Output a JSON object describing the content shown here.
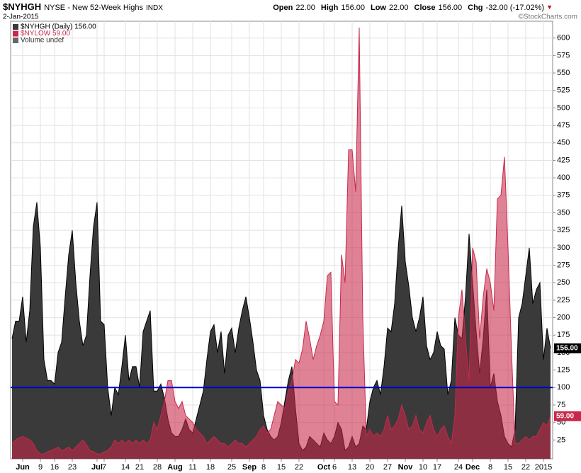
{
  "header": {
    "symbol": "$NYHGH",
    "description": "NYSE - New 52-Week Highs",
    "kind": "INDX",
    "date": "2-Jan-2015",
    "credit": "©StockCharts.com",
    "quote": [
      {
        "label": "Open",
        "value": "22.00"
      },
      {
        "label": "High",
        "value": "156.00"
      },
      {
        "label": "Low",
        "value": "22.00"
      },
      {
        "label": "Close",
        "value": "156.00"
      },
      {
        "label": "Chg",
        "value": "-32.00 (-17.02%)"
      }
    ]
  },
  "chart_data": {
    "type": "area",
    "x": [
      0,
      1,
      2,
      3,
      4,
      5,
      6,
      7,
      8,
      9,
      10,
      11,
      12,
      13,
      14,
      15,
      16,
      17,
      18,
      19,
      20,
      21,
      22,
      23,
      24,
      25,
      26,
      27,
      28,
      29,
      30,
      31,
      32,
      33,
      34,
      35,
      36,
      37,
      38,
      39,
      40,
      41,
      42,
      43,
      44,
      45,
      46,
      47,
      48,
      49,
      50,
      51,
      52,
      53,
      54,
      55,
      56,
      57,
      58,
      59,
      60,
      61,
      62,
      63,
      64,
      65,
      66,
      67,
      68,
      69,
      70,
      71,
      72,
      73,
      74,
      75,
      76,
      77,
      78,
      79,
      80,
      81,
      82,
      83,
      84,
      85,
      86,
      87,
      88,
      89,
      90,
      91,
      92,
      93,
      94,
      95,
      96,
      97,
      98,
      99,
      100,
      101,
      102,
      103,
      104,
      105,
      106,
      107,
      108,
      109,
      110,
      111,
      112,
      113,
      114,
      115,
      116,
      117,
      118,
      119,
      120,
      121,
      122,
      123,
      124,
      125,
      126,
      127,
      128,
      129,
      130,
      131,
      132,
      133,
      134,
      135,
      136,
      137,
      138,
      139,
      140,
      141,
      142,
      143,
      144,
      145,
      146,
      147,
      148,
      149,
      150,
      151,
      152
    ],
    "xlim": [
      -0.4,
      152.6
    ],
    "xticks": [
      {
        "value": 3,
        "label": "Jun"
      },
      {
        "value": 8,
        "label": "9"
      },
      {
        "value": 12,
        "label": "16"
      },
      {
        "value": 17,
        "label": "23"
      },
      {
        "value": 24,
        "label": "Jul"
      },
      {
        "value": 26,
        "label": "7"
      },
      {
        "value": 32,
        "label": "14"
      },
      {
        "value": 36,
        "label": "21"
      },
      {
        "value": 41,
        "label": "28"
      },
      {
        "value": 46,
        "label": "Aug"
      },
      {
        "value": 51,
        "label": "11"
      },
      {
        "value": 56,
        "label": "18"
      },
      {
        "value": 62,
        "label": "25"
      },
      {
        "value": 67,
        "label": "Sep"
      },
      {
        "value": 71,
        "label": "8"
      },
      {
        "value": 76,
        "label": "15"
      },
      {
        "value": 81,
        "label": "22"
      },
      {
        "value": 88,
        "label": "Oct"
      },
      {
        "value": 91,
        "label": "6"
      },
      {
        "value": 96,
        "label": "13"
      },
      {
        "value": 101,
        "label": "20"
      },
      {
        "value": 106,
        "label": "27"
      },
      {
        "value": 111,
        "label": "Nov"
      },
      {
        "value": 116,
        "label": "10"
      },
      {
        "value": 120,
        "label": "17"
      },
      {
        "value": 126,
        "label": "24"
      },
      {
        "value": 130,
        "label": "Dec"
      },
      {
        "value": 135,
        "label": "8"
      },
      {
        "value": 140,
        "label": "15"
      },
      {
        "value": 145,
        "label": "22"
      },
      {
        "value": 150,
        "label": "2015"
      }
    ],
    "ylim": [
      -2,
      624
    ],
    "yticks": [
      25,
      50,
      75,
      100,
      125,
      150,
      175,
      200,
      225,
      250,
      275,
      300,
      325,
      350,
      375,
      400,
      425,
      450,
      475,
      500,
      525,
      550,
      575,
      600
    ],
    "grid": true,
    "reference_line": {
      "value": 100,
      "color": "#0000cc"
    },
    "series": [
      {
        "name": "$NYHGH (Daily) 156.00",
        "color": "#3a3a3a",
        "tag": "156.00",
        "values": [
          170,
          195,
          195,
          230,
          165,
          210,
          330,
          365,
          300,
          140,
          110,
          110,
          105,
          150,
          165,
          230,
          290,
          325,
          250,
          195,
          160,
          175,
          260,
          330,
          365,
          195,
          190,
          100,
          60,
          100,
          90,
          130,
          175,
          110,
          130,
          130,
          100,
          180,
          195,
          210,
          95,
          95,
          105,
          85,
          55,
          35,
          30,
          30,
          40,
          55,
          40,
          35,
          55,
          75,
          95,
          140,
          180,
          190,
          150,
          180,
          120,
          175,
          185,
          150,
          185,
          210,
          230,
          200,
          165,
          125,
          110,
          60,
          40,
          30,
          25,
          30,
          50,
          80,
          110,
          130,
          70,
          20,
          10,
          15,
          30,
          25,
          20,
          15,
          35,
          25,
          20,
          30,
          50,
          40,
          10,
          15,
          30,
          15,
          20,
          45,
          40,
          80,
          100,
          110,
          90,
          130,
          185,
          180,
          220,
          300,
          360,
          280,
          245,
          200,
          180,
          200,
          230,
          160,
          140,
          150,
          180,
          160,
          155,
          90,
          110,
          200,
          175,
          170,
          230,
          320,
          250,
          180,
          120,
          170,
          240,
          100,
          120,
          80,
          60,
          30,
          20,
          15,
          40,
          200,
          220,
          260,
          300,
          220,
          240,
          250,
          140,
          185,
          156
        ]
      },
      {
        "name": "$NYLOW 59.00",
        "color": "#c8284a",
        "tag": "59.00",
        "values": [
          20,
          25,
          28,
          30,
          28,
          25,
          20,
          10,
          5,
          5,
          8,
          10,
          12,
          15,
          10,
          12,
          15,
          10,
          15,
          20,
          25,
          18,
          10,
          8,
          5,
          5,
          8,
          10,
          15,
          25,
          20,
          25,
          20,
          25,
          20,
          25,
          20,
          25,
          20,
          25,
          50,
          40,
          60,
          80,
          110,
          110,
          80,
          70,
          80,
          60,
          55,
          50,
          40,
          35,
          30,
          20,
          25,
          30,
          25,
          20,
          20,
          15,
          20,
          25,
          20,
          20,
          15,
          20,
          25,
          30,
          40,
          45,
          35,
          40,
          60,
          80,
          75,
          70,
          95,
          110,
          140,
          135,
          155,
          195,
          170,
          140,
          160,
          175,
          195,
          260,
          265,
          80,
          75,
          290,
          250,
          440,
          440,
          380,
          615,
          200,
          30,
          40,
          30,
          35,
          30,
          40,
          60,
          40,
          45,
          55,
          75,
          60,
          40,
          45,
          60,
          40,
          35,
          50,
          60,
          40,
          30,
          40,
          45,
          30,
          20,
          60,
          200,
          240,
          170,
          110,
          300,
          280,
          170,
          230,
          270,
          250,
          210,
          370,
          375,
          430,
          300,
          150,
          20,
          20,
          25,
          30,
          25,
          30,
          30,
          40,
          50,
          45,
          59
        ]
      }
    ],
    "extra_legend": "Volume undef"
  }
}
